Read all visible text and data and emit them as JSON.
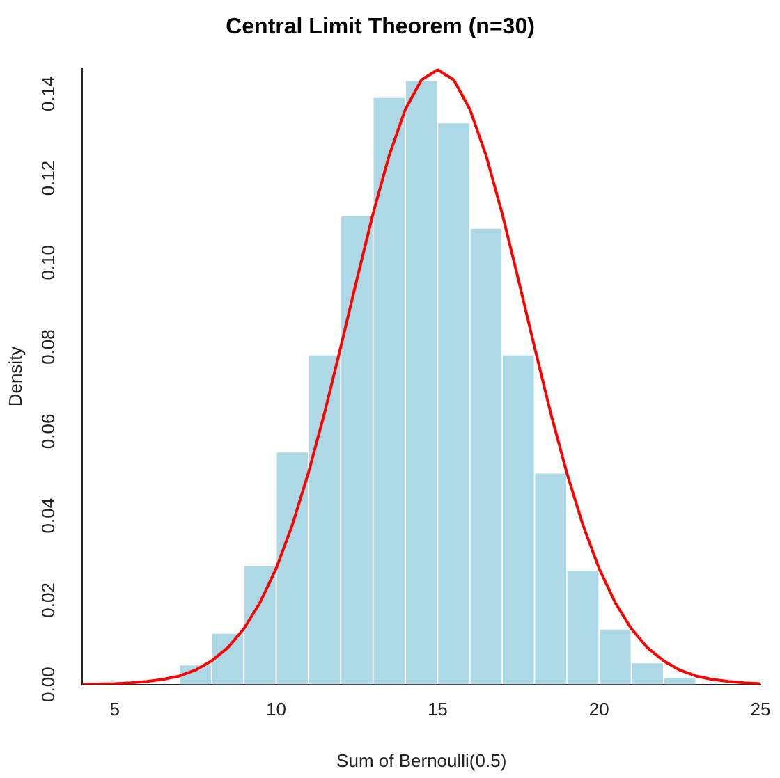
{
  "chart_data": {
    "type": "histogram",
    "title": "Central Limit Theorem (n=30)",
    "xlabel": "Sum of Bernoulli(0.5)",
    "ylabel": "Density",
    "bins": [
      6,
      7,
      8,
      9,
      10,
      11,
      12,
      13,
      14,
      15,
      16,
      17,
      18,
      19,
      20,
      21,
      22,
      23
    ],
    "values": [
      null,
      0.0045,
      0.012,
      0.028,
      0.055,
      0.078,
      0.111,
      0.139,
      0.143,
      0.133,
      0.108,
      0.078,
      0.05,
      0.027,
      0.013,
      0.005,
      0.0015
    ],
    "color": "#add8e6",
    "series": [
      {
        "type": "line",
        "color": "#ff0000",
        "marker": "none",
        "x": [
          4,
          4.5,
          5,
          5.5,
          6,
          6.5,
          7,
          7.5,
          8,
          8.5,
          9,
          9.5,
          10,
          10.5,
          11,
          11.5,
          12,
          12.5,
          13,
          13.5,
          14,
          14.5,
          15,
          15.5,
          16,
          16.5,
          17,
          17.5,
          18,
          18.5,
          19,
          19.5,
          20,
          20.5,
          21,
          21.5,
          22,
          22.5,
          23,
          23.5,
          24,
          24.5,
          25
        ],
        "values": [
          0.0,
          0.0001,
          0.0002,
          0.0004,
          0.0007,
          0.0012,
          0.002,
          0.0034,
          0.0056,
          0.0087,
          0.0132,
          0.0194,
          0.0275,
          0.0378,
          0.0502,
          0.0644,
          0.08,
          0.096,
          0.1116,
          0.1254,
          0.1363,
          0.1433,
          0.1457,
          0.1433,
          0.1363,
          0.1254,
          0.1116,
          0.096,
          0.08,
          0.0644,
          0.0502,
          0.0378,
          0.0275,
          0.0194,
          0.0132,
          0.0087,
          0.0056,
          0.0034,
          0.002,
          0.0012,
          0.0007,
          0.0004,
          0.0002
        ]
      }
    ],
    "xlim": [
      4,
      25
    ],
    "xticks": [
      5,
      10,
      15,
      20,
      25
    ],
    "ylim": [
      0,
      0.146
    ],
    "yticks": [
      {
        "value": 0,
        "label": "0.00"
      },
      {
        "value": 0.02,
        "label": "0.02"
      },
      {
        "value": 0.04,
        "label": "0.04"
      },
      {
        "value": 0.06,
        "label": "0.06"
      },
      {
        "value": 0.08,
        "label": "0.08"
      },
      {
        "value": 0.1,
        "label": "0.10"
      },
      {
        "value": 0.12,
        "label": "0.12"
      },
      {
        "value": 0.14,
        "label": "0.14"
      }
    ],
    "grid": false,
    "legend": false
  }
}
